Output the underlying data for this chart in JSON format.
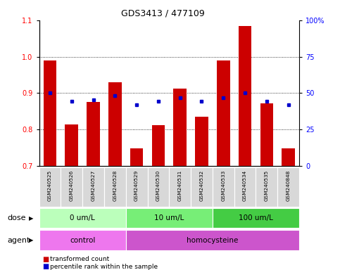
{
  "title": "GDS3413 / 477109",
  "samples": [
    "GSM240525",
    "GSM240526",
    "GSM240527",
    "GSM240528",
    "GSM240529",
    "GSM240530",
    "GSM240531",
    "GSM240532",
    "GSM240533",
    "GSM240534",
    "GSM240535",
    "GSM240848"
  ],
  "transformed_count": [
    0.99,
    0.815,
    0.875,
    0.93,
    0.748,
    0.812,
    0.913,
    0.835,
    0.99,
    1.085,
    0.872,
    0.748
  ],
  "percentile_rank_left": [
    0.9,
    0.878,
    0.882,
    0.893,
    0.868,
    0.878,
    0.888,
    0.878,
    0.888,
    0.9,
    0.878,
    0.868
  ],
  "bar_color": "#cc0000",
  "dot_color": "#0000cc",
  "ylim_left": [
    0.7,
    1.1
  ],
  "ylim_right": [
    0,
    100
  ],
  "yticks_left": [
    0.7,
    0.8,
    0.9,
    1.0,
    1.1
  ],
  "yticks_right": [
    0,
    25,
    50,
    75,
    100
  ],
  "gridlines": [
    0.8,
    0.9,
    1.0
  ],
  "dose_groups": [
    {
      "label": "0 um/L",
      "start": 0,
      "end": 4,
      "color": "#bbffbb"
    },
    {
      "label": "10 um/L",
      "start": 4,
      "end": 8,
      "color": "#77ee77"
    },
    {
      "label": "100 um/L",
      "start": 8,
      "end": 12,
      "color": "#44cc44"
    }
  ],
  "agent_groups": [
    {
      "label": "control",
      "start": 0,
      "end": 4,
      "color": "#ee77ee"
    },
    {
      "label": "homocysteine",
      "start": 4,
      "end": 12,
      "color": "#cc55cc"
    }
  ],
  "legend_red": "transformed count",
  "legend_blue": "percentile rank within the sample",
  "xlabel_dose": "dose",
  "xlabel_agent": "agent",
  "bg_color": "#ffffff",
  "plot_bg": "#ffffff",
  "tick_label_bg": "#d8d8d8"
}
